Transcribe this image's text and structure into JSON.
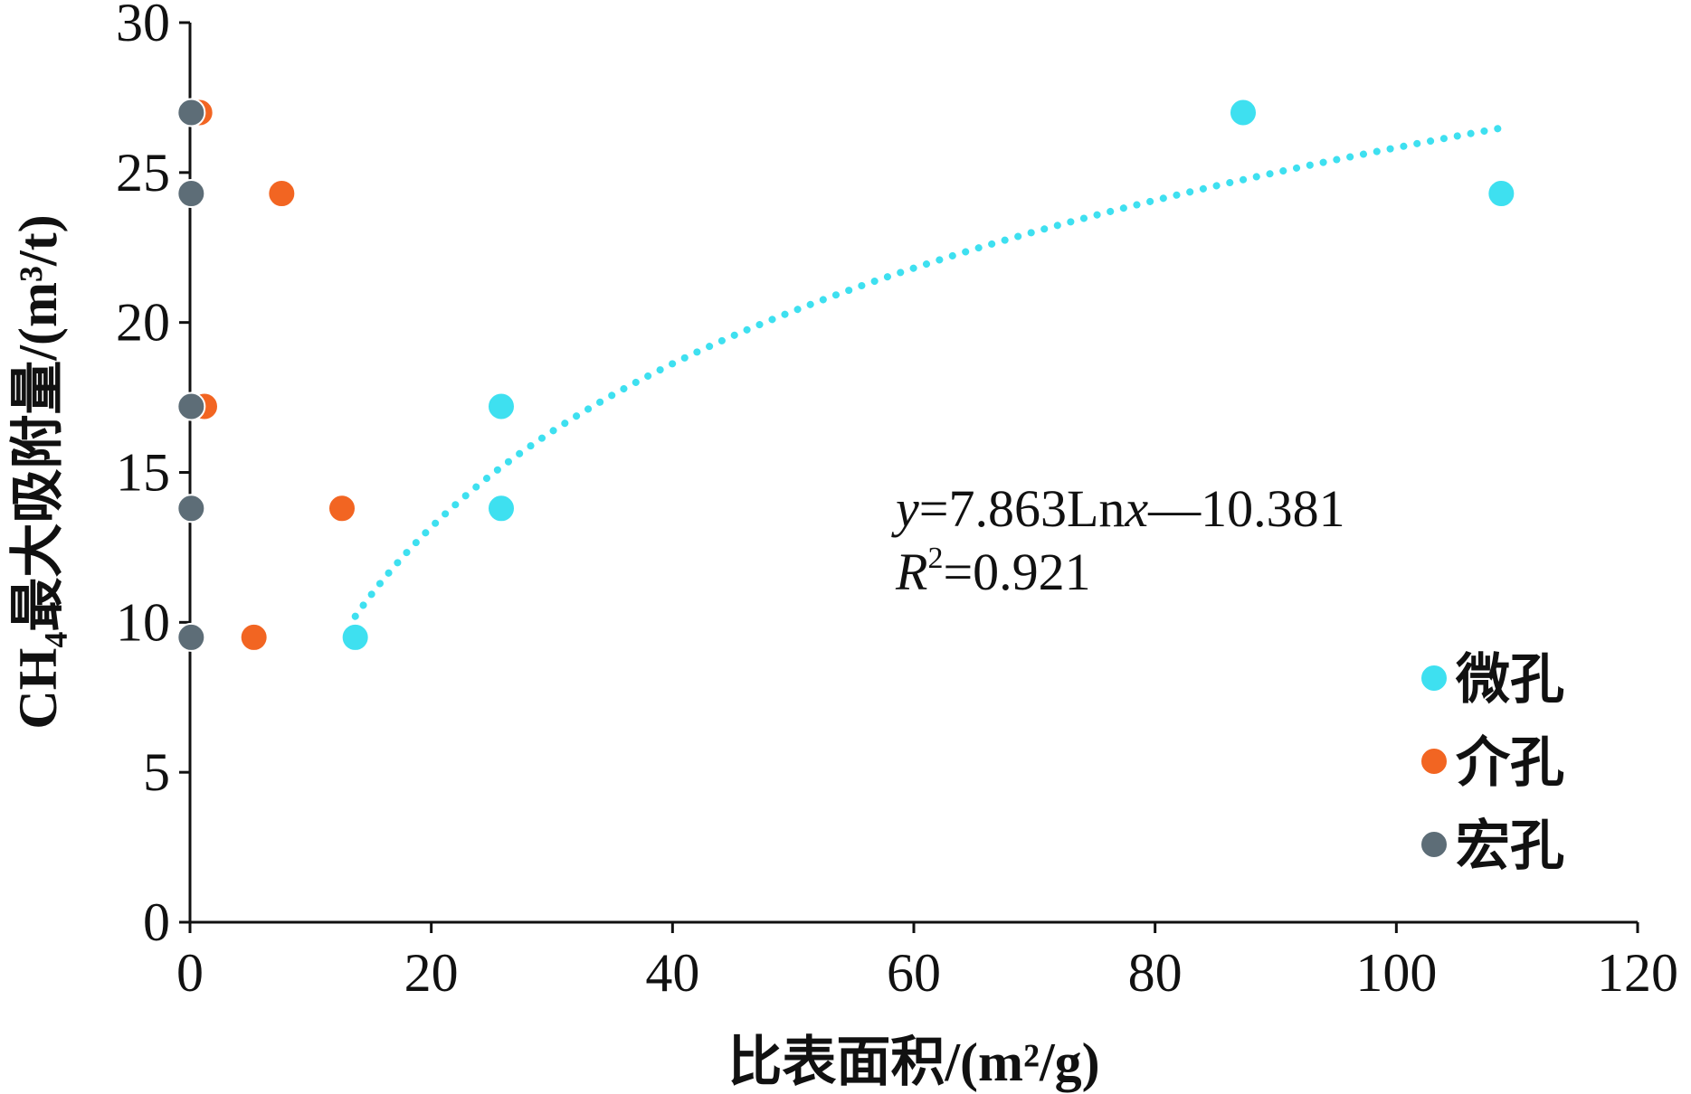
{
  "chart_data": {
    "type": "scatter",
    "title": "",
    "xlabel": "比表面积/(m²/g)",
    "ylabel": "CH₄最大吸附量/(m³/t)",
    "xlim": [
      0,
      120
    ],
    "ylim": [
      0,
      30
    ],
    "x_ticks": [
      "0",
      "20",
      "40",
      "60",
      "80",
      "100",
      "120"
    ],
    "y_ticks": [
      "0",
      "5",
      "10",
      "15",
      "20",
      "25",
      "30"
    ],
    "grid": false,
    "legend_position": "bottom-right",
    "series": [
      {
        "name": "微孔",
        "color": "#3ee0f0",
        "points": [
          {
            "x": 13.7,
            "y": 9.5
          },
          {
            "x": 25.8,
            "y": 13.8
          },
          {
            "x": 25.8,
            "y": 17.2
          },
          {
            "x": 87.3,
            "y": 27.0
          },
          {
            "x": 108.7,
            "y": 24.3
          }
        ]
      },
      {
        "name": "介孔",
        "color": "#f26522",
        "points": [
          {
            "x": 0.8,
            "y": 27.0
          },
          {
            "x": 7.6,
            "y": 24.3
          },
          {
            "x": 1.2,
            "y": 17.2
          },
          {
            "x": 12.6,
            "y": 13.8
          },
          {
            "x": 5.3,
            "y": 9.5
          }
        ]
      },
      {
        "name": "宏孔",
        "color": "#5d6d77",
        "points": [
          {
            "x": 0.1,
            "y": 27.0
          },
          {
            "x": 0.1,
            "y": 24.3
          },
          {
            "x": 0.1,
            "y": 17.2
          },
          {
            "x": 0.1,
            "y": 13.8
          },
          {
            "x": 0.1,
            "y": 9.5
          }
        ]
      }
    ],
    "trendline": {
      "series": "微孔",
      "type": "logarithmic",
      "a": 7.863,
      "b": -10.381,
      "x_range": [
        13.7,
        108.7
      ],
      "color": "#3ee0f0",
      "equation_y": "y",
      "equation_eq1": "=7.863Ln",
      "equation_x": "x",
      "equation_rest": "—10.381",
      "r2_R": "R",
      "r2_sup": "2",
      "r2_value": "=0.921"
    }
  }
}
